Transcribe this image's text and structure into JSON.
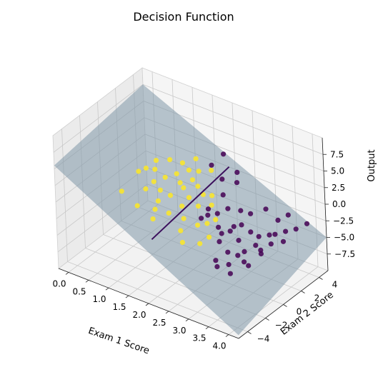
{
  "chart_data": {
    "type": "scatter",
    "title": "Decision Function",
    "xlabel": "Exam 1 Score",
    "ylabel": "Exam 2 Score",
    "zlabel": "Output",
    "x_ticks": [
      "0.0",
      "0.5",
      "1.0",
      "1.5",
      "2.0",
      "2.5",
      "3.0",
      "3.5",
      "4.0"
    ],
    "y_ticks": [
      "−4",
      "−2",
      "0",
      "2",
      "4"
    ],
    "z_ticks": [
      "−7.5",
      "−5.0",
      "−2.5",
      "0.0",
      "2.5",
      "5.0",
      "7.5"
    ],
    "xlim": [
      -0.25,
      4.25
    ],
    "ylim": [
      -5,
      5
    ],
    "zlim": [
      -10,
      10
    ],
    "grid": true,
    "colors": {
      "class_0": "#440154",
      "class_1": "#fde725",
      "surface": "#7f97a8",
      "boundary": "#3b0f5c"
    },
    "series": [
      {
        "values": [
          [
            2.05,
            1.7,
            -2.5
          ],
          [
            2.1,
            1.4,
            -3.0
          ],
          [
            2.3,
            1.6,
            -2.5
          ],
          [
            2.45,
            1.0,
            -3.6
          ],
          [
            2.55,
            0.9,
            -4.2
          ],
          [
            2.6,
            0.4,
            -4.8
          ],
          [
            2.5,
            1.9,
            -1.6
          ],
          [
            2.7,
            1.2,
            -3.8
          ],
          [
            2.65,
            -0.3,
            -6.8
          ],
          [
            2.75,
            -0.6,
            -7.2
          ],
          [
            2.85,
            0.2,
            -5.6
          ],
          [
            2.9,
            1.6,
            -2.8
          ],
          [
            3.0,
            -0.4,
            -6.5
          ],
          [
            2.95,
            1.0,
            -4.4
          ],
          [
            3.1,
            0.2,
            -5.5
          ],
          [
            3.2,
            0.5,
            -5.0
          ],
          [
            3.15,
            -0.9,
            -7.0
          ],
          [
            3.3,
            0.0,
            -5.8
          ],
          [
            3.4,
            0.9,
            -4.0
          ],
          [
            3.5,
            1.0,
            -4.6
          ],
          [
            3.35,
            1.5,
            -3.4
          ],
          [
            3.55,
            1.8,
            -3.0
          ],
          [
            3.5,
            -0.4,
            -5.5
          ],
          [
            3.6,
            0.6,
            -4.5
          ],
          [
            3.7,
            1.3,
            -3.5
          ],
          [
            3.8,
            2.5,
            -2.6
          ],
          [
            3.95,
            3.0,
            -2.4
          ],
          [
            3.85,
            2.0,
            -3.5
          ],
          [
            4.0,
            4.0,
            -2.5
          ],
          [
            3.55,
            2.8,
            -1.8
          ],
          [
            3.65,
            3.5,
            -1.5
          ],
          [
            2.3,
            2.3,
            -0.4
          ],
          [
            2.8,
            2.0,
            -1.3
          ],
          [
            2.15,
            2.9,
            1.0
          ],
          [
            1.85,
            3.1,
            2.2
          ],
          [
            2.4,
            3.5,
            2.0
          ],
          [
            2.0,
            3.8,
            3.5
          ],
          [
            2.5,
            3.0,
            1.2
          ],
          [
            3.3,
            2.6,
            -0.5
          ],
          [
            3.0,
            2.2,
            -1.5
          ],
          [
            2.0,
            1.1,
            -3.4
          ],
          [
            3.1,
            1.7,
            -3.5
          ],
          [
            3.6,
            2.2,
            -3.2
          ],
          [
            2.75,
            1.4,
            -3.2
          ]
        ]
      },
      {
        "values": [
          [
            0.6,
            0.5,
            1.0
          ],
          [
            0.5,
            -1.0,
            -0.7
          ],
          [
            0.9,
            1.0,
            1.5
          ],
          [
            1.0,
            0.4,
            0.5
          ],
          [
            1.2,
            0.8,
            1.2
          ],
          [
            1.3,
            -0.5,
            -0.8
          ],
          [
            1.4,
            1.2,
            1.8
          ],
          [
            1.5,
            0.0,
            0.0
          ],
          [
            1.6,
            1.7,
            2.3
          ],
          [
            1.7,
            0.6,
            1.0
          ],
          [
            1.8,
            1.9,
            2.4
          ],
          [
            1.9,
            0.3,
            0.3
          ],
          [
            1.95,
            1.1,
            1.3
          ],
          [
            2.0,
            -0.8,
            -1.5
          ],
          [
            2.15,
            0.2,
            -0.3
          ],
          [
            2.3,
            -0.6,
            -2.0
          ],
          [
            2.35,
            0.8,
            -0.3
          ],
          [
            2.5,
            -1.3,
            -3.6
          ],
          [
            2.6,
            -0.7,
            -3.0
          ],
          [
            2.2,
            -1.9,
            -3.5
          ],
          [
            1.5,
            -2.0,
            -1.5
          ],
          [
            1.4,
            -1.3,
            -1.0
          ],
          [
            1.0,
            -1.5,
            -1.2
          ],
          [
            0.8,
            1.6,
            2.0
          ],
          [
            1.1,
            1.8,
            2.6
          ],
          [
            1.6,
            2.5,
            3.2
          ],
          [
            1.75,
            1.4,
            1.5
          ],
          [
            2.05,
            2.2,
            2.8
          ],
          [
            2.1,
            1.0,
            0.5
          ],
          [
            1.25,
            0.0,
            0.2
          ],
          [
            0.95,
            -0.3,
            0.0
          ],
          [
            0.7,
            0.9,
            1.3
          ],
          [
            1.55,
            0.9,
            1.1
          ],
          [
            1.85,
            -0.3,
            -0.5
          ],
          [
            2.45,
            -0.2,
            -1.8
          ],
          [
            2.25,
            1.3,
            0.4
          ],
          [
            1.35,
            2.1,
            2.4
          ],
          [
            2.05,
            -1.4,
            -2.6
          ],
          [
            1.65,
            -0.9,
            -1.4
          ],
          [
            2.55,
            0.3,
            -1.5
          ]
        ]
      }
    ],
    "surface": {
      "z": "decision plane",
      "x_range": [
        -0.25,
        4.25
      ],
      "y_range": [
        -5,
        5
      ]
    },
    "boundary": {
      "from": [
        1.85,
        5.0,
        0.0
      ],
      "to": [
        2.15,
        -5.0,
        0.0
      ]
    }
  }
}
